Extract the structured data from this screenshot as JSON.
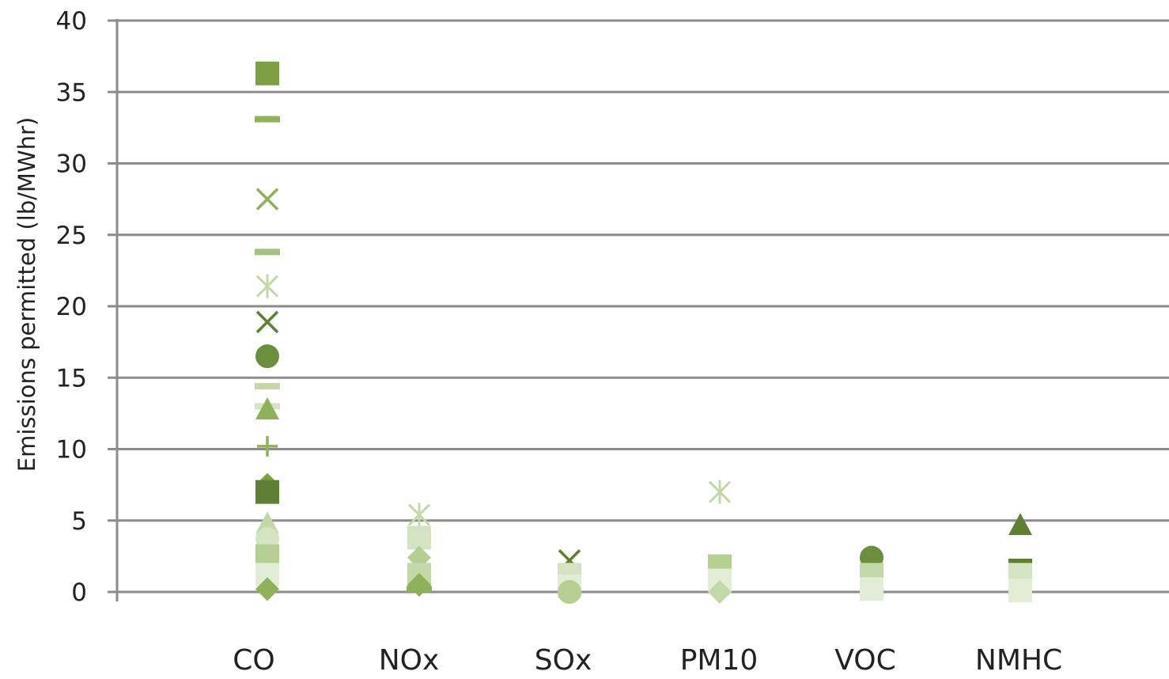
{
  "chart_data": {
    "type": "scatter",
    "title": "",
    "xlabel": "",
    "ylabel": "Emissions permitted (lb/MWhr)",
    "categories": [
      "CO",
      "NOx",
      "SOx",
      "PM10",
      "VOC",
      "NMHC"
    ],
    "ylim": [
      0,
      40
    ],
    "yticks": [
      0,
      5,
      10,
      15,
      20,
      25,
      30,
      35,
      40
    ],
    "grid": true,
    "legend": "none",
    "points": [
      {
        "category": "CO",
        "y": 36.3,
        "marker": "square",
        "color": "#7f9f45"
      },
      {
        "category": "CO",
        "y": 33.1,
        "marker": "dash",
        "color": "#8fb15a"
      },
      {
        "category": "CO",
        "y": 27.5,
        "marker": "x",
        "color": "#8fb15a"
      },
      {
        "category": "CO",
        "y": 23.8,
        "marker": "dash",
        "color": "#a3c27a"
      },
      {
        "category": "CO",
        "y": 21.4,
        "marker": "star",
        "color": "#c3d8a9"
      },
      {
        "category": "CO",
        "y": 18.9,
        "marker": "x",
        "color": "#5f7f33"
      },
      {
        "category": "CO",
        "y": 16.5,
        "marker": "circle",
        "color": "#6b8e3c"
      },
      {
        "category": "CO",
        "y": 14.4,
        "marker": "dash",
        "color": "#c3d8a9"
      },
      {
        "category": "CO",
        "y": 13.0,
        "marker": "dash",
        "color": "#d4e3c1"
      },
      {
        "category": "CO",
        "y": 12.8,
        "marker": "triangle",
        "color": "#8fb15a"
      },
      {
        "category": "CO",
        "y": 10.2,
        "marker": "plus",
        "color": "#8fb15a"
      },
      {
        "category": "CO",
        "y": 7.5,
        "marker": "diamond",
        "color": "#7f9f45"
      },
      {
        "category": "CO",
        "y": 7.0,
        "marker": "square",
        "color": "#5f7f33"
      },
      {
        "category": "CO",
        "y": 4.8,
        "marker": "triangle",
        "color": "#c3d8a9"
      },
      {
        "category": "CO",
        "y": 3.7,
        "marker": "circle",
        "color": "#d4e3c1"
      },
      {
        "category": "CO",
        "y": 2.5,
        "marker": "square",
        "color": "#b5cf93"
      },
      {
        "category": "CO",
        "y": 1.2,
        "marker": "square",
        "color": "#e2ecd6"
      },
      {
        "category": "CO",
        "y": 0.2,
        "marker": "diamond",
        "color": "#8fb15a"
      },
      {
        "category": "NOx",
        "y": 5.4,
        "marker": "star",
        "color": "#c3d8a9"
      },
      {
        "category": "NOx",
        "y": 3.8,
        "marker": "square",
        "color": "#d4e3c1"
      },
      {
        "category": "NOx",
        "y": 2.4,
        "marker": "diamond",
        "color": "#b5cf93"
      },
      {
        "category": "NOx",
        "y": 1.2,
        "marker": "square",
        "color": "#c3d8a9"
      },
      {
        "category": "NOx",
        "y": 0.5,
        "marker": "diamond",
        "color": "#8fb15a"
      },
      {
        "category": "NOx",
        "y": 0.2,
        "marker": "dash",
        "color": "#8fb15a"
      },
      {
        "category": "SOx",
        "y": 2.2,
        "marker": "x",
        "color": "#5f7f33"
      },
      {
        "category": "SOx",
        "y": 1.2,
        "marker": "square",
        "color": "#d4e3c1"
      },
      {
        "category": "SOx",
        "y": 0.4,
        "marker": "square",
        "color": "#e2ecd6"
      },
      {
        "category": "SOx",
        "y": 0.0,
        "marker": "circle",
        "color": "#b5cf93"
      },
      {
        "category": "PM10",
        "y": 7.0,
        "marker": "star",
        "color": "#c3d8a9"
      },
      {
        "category": "PM10",
        "y": 1.8,
        "marker": "square",
        "color": "#b5cf93"
      },
      {
        "category": "PM10",
        "y": 0.8,
        "marker": "square",
        "color": "#e2ecd6"
      },
      {
        "category": "PM10",
        "y": 0.0,
        "marker": "diamond",
        "color": "#c3d8a9"
      },
      {
        "category": "VOC",
        "y": 2.4,
        "marker": "circle",
        "color": "#6b8e3c"
      },
      {
        "category": "VOC",
        "y": 1.2,
        "marker": "square",
        "color": "#c3d8a9"
      },
      {
        "category": "VOC",
        "y": 0.2,
        "marker": "square",
        "color": "#e2ecd6"
      },
      {
        "category": "NMHC",
        "y": 4.7,
        "marker": "triangle",
        "color": "#5f7f33"
      },
      {
        "category": "NMHC",
        "y": 1.5,
        "marker": "square",
        "color": "#5f7f33"
      },
      {
        "category": "NMHC",
        "y": 1.2,
        "marker": "square",
        "color": "#d4e3c1"
      },
      {
        "category": "NMHC",
        "y": 0.1,
        "marker": "square",
        "color": "#e2ecd6"
      }
    ],
    "colors": {
      "grid": "#8c8c8c",
      "axis": "#8c8c8c",
      "text": "#222222"
    }
  }
}
